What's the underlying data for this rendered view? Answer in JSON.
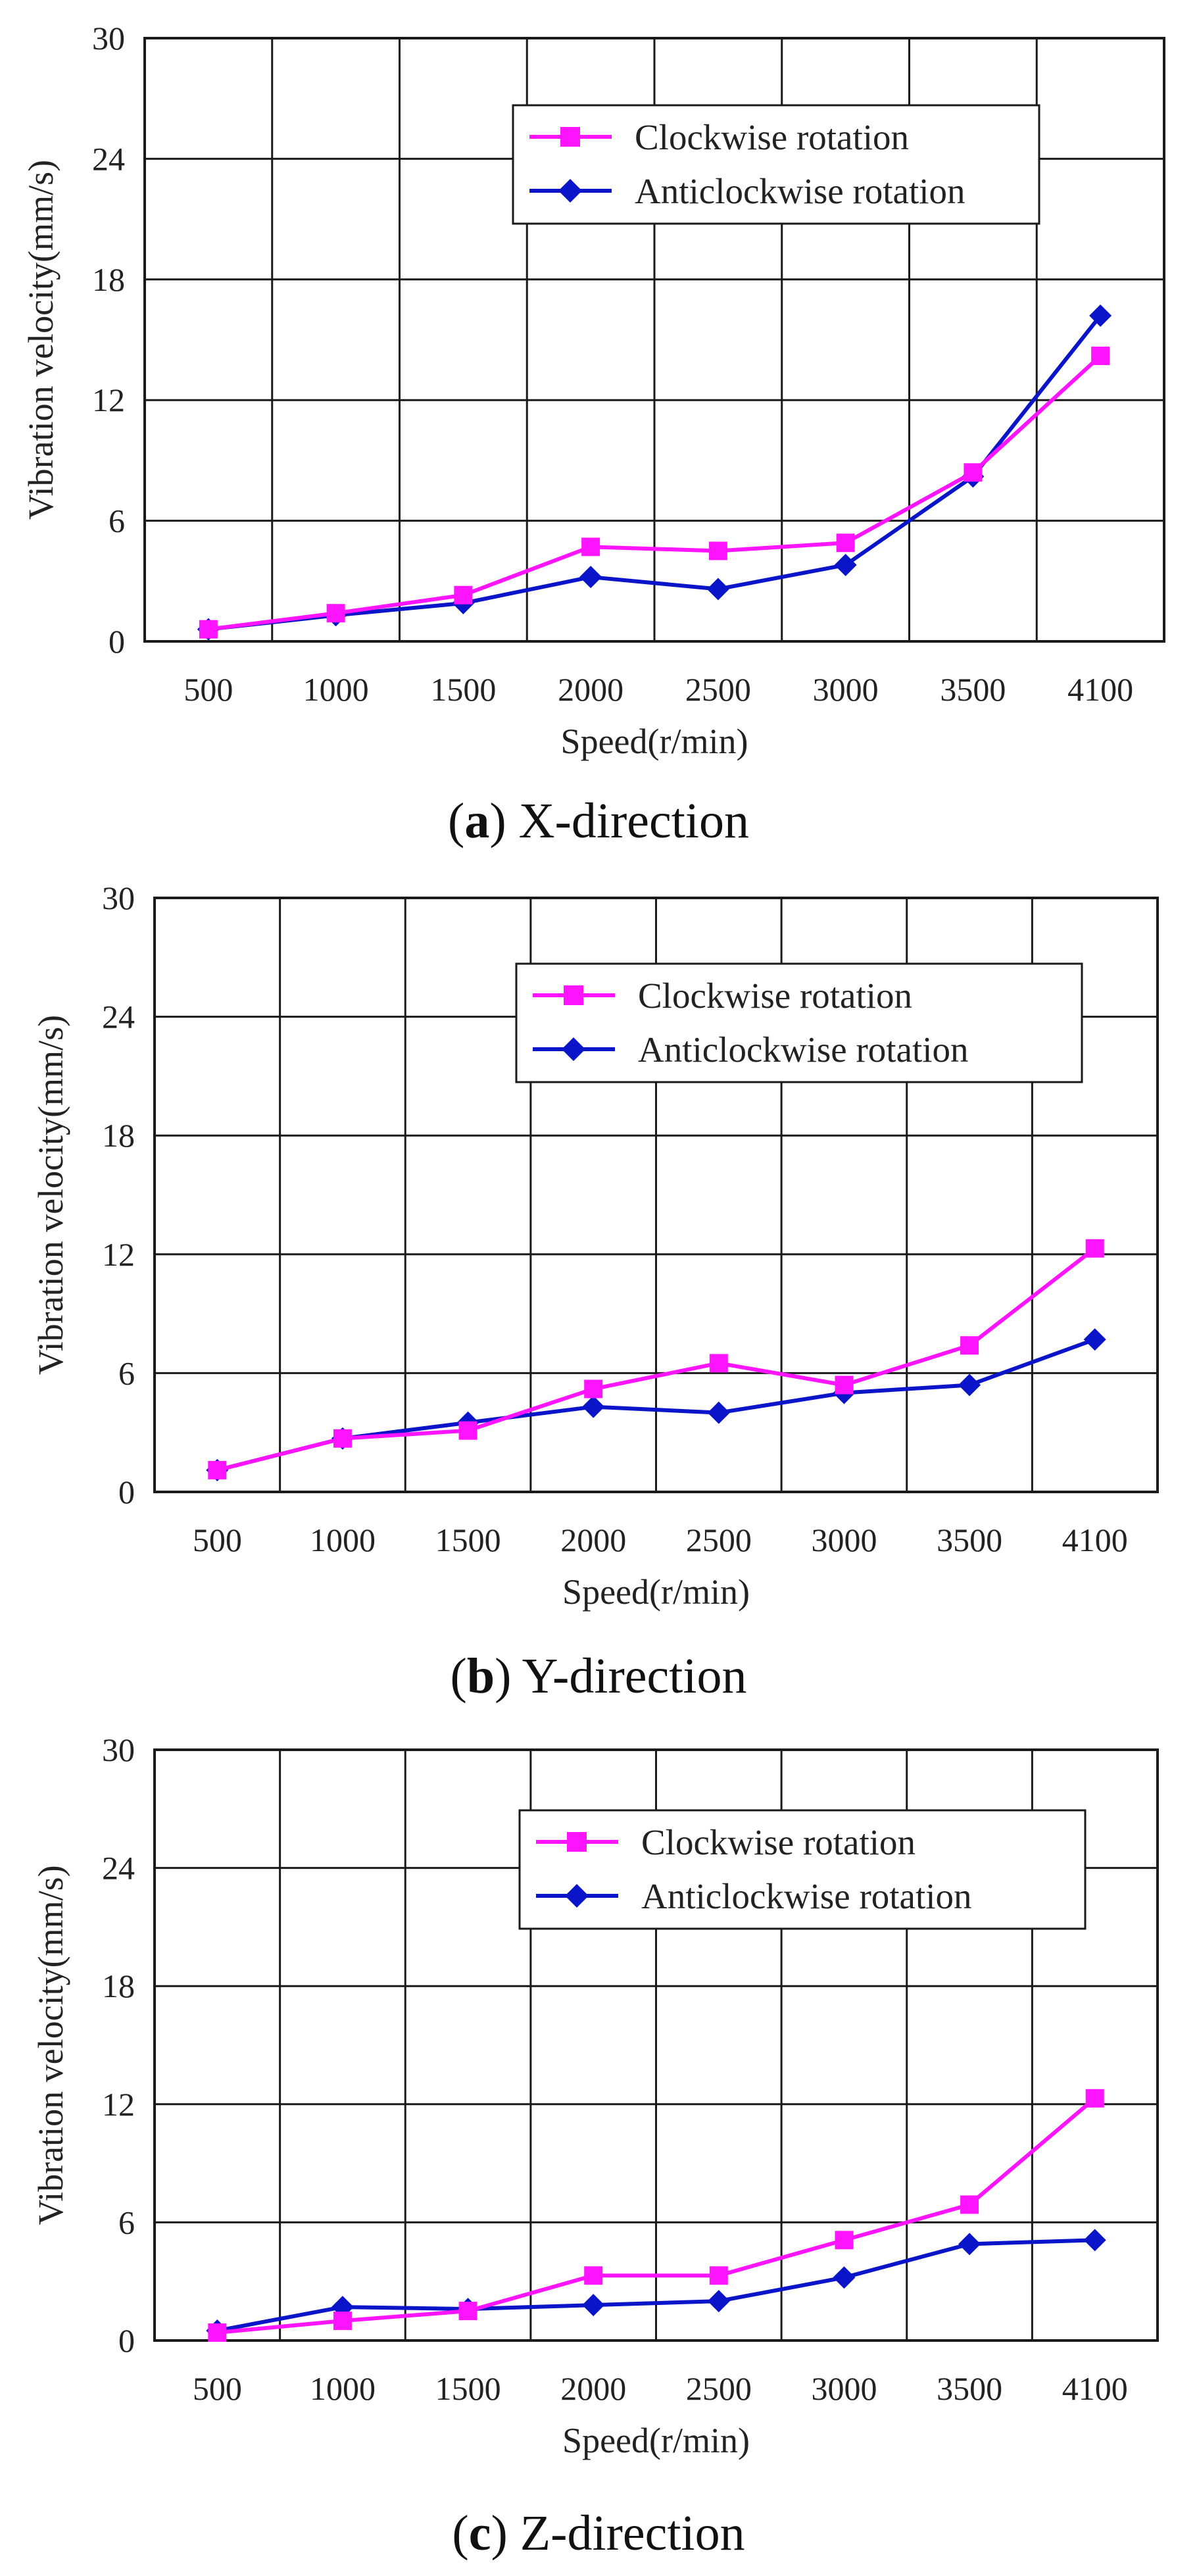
{
  "colors": {
    "clockwise": "#ff14ff",
    "anticlockwise": "#0a14c8",
    "grid": "#1a1a1a"
  },
  "chart_data": [
    {
      "type": "line",
      "caption_letter": "a",
      "caption_text": "X-direction",
      "xlabel": "Speed(r/min)",
      "ylabel": "Vibration velocity(mm/s)",
      "categories": [
        "500",
        "1000",
        "1500",
        "2000",
        "2500",
        "3000",
        "3500",
        "4100"
      ],
      "ylim": [
        0,
        30
      ],
      "yticks": [
        0,
        6,
        12,
        18,
        24,
        30
      ],
      "ytick_labels": [
        "0",
        "6",
        "12",
        "18",
        "24",
        "30"
      ],
      "legend_position": "top-right",
      "series": [
        {
          "name": "Clockwise rotation",
          "marker": "square",
          "values": [
            0.6,
            1.4,
            2.3,
            4.7,
            4.5,
            4.9,
            8.4,
            14.2
          ]
        },
        {
          "name": "Anticlockwise rotation",
          "marker": "diamond",
          "values": [
            0.6,
            1.3,
            1.9,
            3.2,
            2.6,
            3.8,
            8.2,
            16.2
          ]
        }
      ]
    },
    {
      "type": "line",
      "caption_letter": "b",
      "caption_text": "Y-direction",
      "xlabel": "Speed(r/min)",
      "ylabel": "Vibration velocity(mm/s)",
      "categories": [
        "500",
        "1000",
        "1500",
        "2000",
        "2500",
        "3000",
        "3500",
        "4100"
      ],
      "ylim": [
        0,
        30
      ],
      "yticks": [
        0,
        6,
        12,
        18,
        24,
        30
      ],
      "ytick_labels": [
        "0",
        "6",
        "12",
        "18",
        "24",
        "30"
      ],
      "legend_position": "top-right",
      "series": [
        {
          "name": "Clockwise rotation",
          "marker": "square",
          "values": [
            1.1,
            2.7,
            3.1,
            5.2,
            6.5,
            5.4,
            7.4,
            12.3
          ]
        },
        {
          "name": "Anticlockwise rotation",
          "marker": "diamond",
          "values": [
            1.1,
            2.7,
            3.5,
            4.3,
            4.0,
            5.0,
            5.4,
            7.7
          ]
        }
      ]
    },
    {
      "type": "line",
      "caption_letter": "c",
      "caption_text": "Z-direction",
      "xlabel": "Speed(r/min)",
      "ylabel": "Vibration velocity(mm/s)",
      "categories": [
        "500",
        "1000",
        "1500",
        "2000",
        "2500",
        "3000",
        "3500",
        "4100"
      ],
      "ylim": [
        0,
        30
      ],
      "yticks": [
        0,
        6,
        12,
        18,
        24,
        30
      ],
      "ytick_labels": [
        "0",
        "6",
        "12",
        "18",
        "24",
        "30"
      ],
      "legend_position": "top-right",
      "series": [
        {
          "name": "Clockwise rotation",
          "marker": "square",
          "values": [
            0.4,
            1.0,
            1.5,
            3.3,
            3.3,
            5.1,
            6.9,
            12.3
          ]
        },
        {
          "name": "Anticlockwise rotation",
          "marker": "diamond",
          "values": [
            0.5,
            1.7,
            1.6,
            1.8,
            2.0,
            3.2,
            4.9,
            5.1
          ]
        }
      ]
    }
  ]
}
